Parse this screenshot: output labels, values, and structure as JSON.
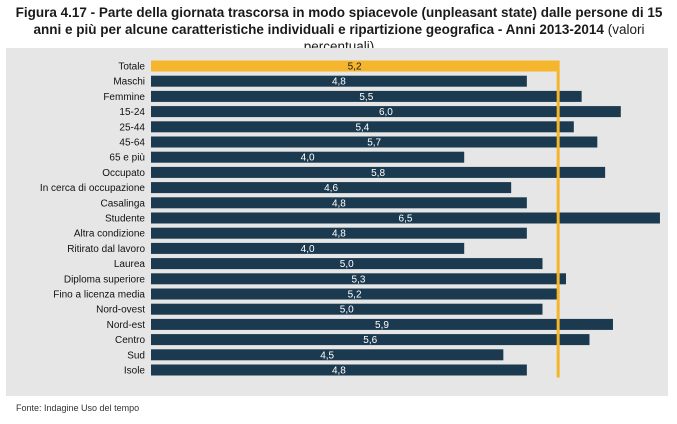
{
  "title_lead": "Figura 4.17 - Parte della giornata trascorsa in modo spiacevole (unpleasant state) dalle persone di 15 anni e più per alcune caratteristiche individuali e ripartizione geografica - Anni 2013-2014",
  "title_sub": "(valori percentuali)",
  "source": "Fonte: Indagine Uso del tempo",
  "colors": {
    "bar": "#1b3a4f",
    "highlight": "#f5b52c",
    "background": "#e6e6e6"
  },
  "chart_data": {
    "type": "bar",
    "orientation": "horizontal",
    "categories": [
      "Totale",
      "Maschi",
      "Femmine",
      "15-24",
      "25-44",
      "45-64",
      "65 e più",
      "Occupato",
      "In cerca di occupazione",
      "Casalinga",
      "Studente",
      "Altra condizione",
      "Ritirato dal lavoro",
      "Laurea",
      "Diploma superiore",
      "Fino a licenza media",
      "Nord-ovest",
      "Nord-est",
      "Centro",
      "Sud",
      "Isole"
    ],
    "values": [
      5.2,
      4.8,
      5.5,
      6.0,
      5.4,
      5.7,
      4.0,
      5.8,
      4.6,
      4.8,
      6.5,
      4.8,
      4.0,
      5.0,
      5.3,
      5.2,
      5.0,
      5.9,
      5.6,
      4.5,
      4.8
    ],
    "value_labels": [
      "5,2",
      "4,8",
      "5,5",
      "6,0",
      "5,4",
      "5,7",
      "4,0",
      "5,8",
      "4,6",
      "4,8",
      "6,5",
      "4,8",
      "4,0",
      "5,0",
      "5,3",
      "5,2",
      "5,0",
      "5,9",
      "5,6",
      "4,5",
      "4,8"
    ],
    "highlight_category": "Totale",
    "reference_line_value": 5.2,
    "xlim": [
      0,
      6.5
    ],
    "grid": false,
    "xlabel": "",
    "ylabel": ""
  }
}
